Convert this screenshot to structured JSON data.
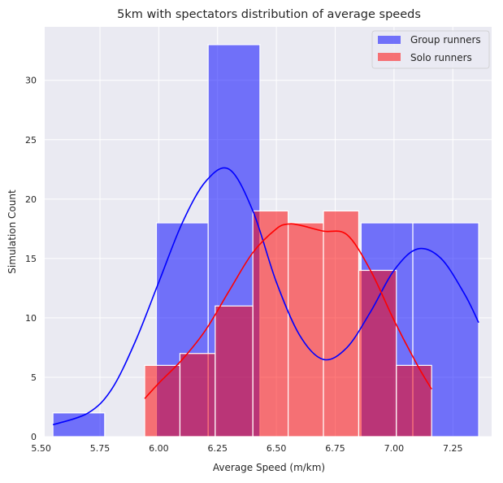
{
  "chart_data": {
    "type": "histogram",
    "title": "5km with spectators distribution of average speeds",
    "xlabel": "Average Speed (m/km)",
    "ylabel": "Simulation Count",
    "xlim": [
      5.515,
      7.415
    ],
    "ylim": [
      0,
      34.5
    ],
    "x_ticks": [
      "5.50",
      "5.75",
      "6.00",
      "6.25",
      "6.50",
      "6.75",
      "7.00",
      "7.25"
    ],
    "x_tick_values": [
      5.5,
      5.75,
      6.0,
      6.25,
      6.5,
      6.75,
      7.0,
      7.25
    ],
    "y_ticks": [
      "0",
      "5",
      "10",
      "15",
      "20",
      "25",
      "30"
    ],
    "y_tick_values": [
      0,
      5,
      10,
      15,
      20,
      25,
      30
    ],
    "grid": true,
    "legend_position": "top-right",
    "series": [
      {
        "name": "Group runners",
        "color": "#0000ff",
        "bins": [
          {
            "x0": 5.55,
            "x1": 5.77,
            "count": 2
          },
          {
            "x0": 5.77,
            "x1": 5.99,
            "count": 0
          },
          {
            "x0": 5.99,
            "x1": 6.21,
            "count": 18
          },
          {
            "x0": 6.21,
            "x1": 6.43,
            "count": 33
          },
          {
            "x0": 6.43,
            "x1": 6.64,
            "count": 0
          },
          {
            "x0": 6.64,
            "x1": 6.86,
            "count": 0
          },
          {
            "x0": 6.86,
            "x1": 7.08,
            "count": 18
          },
          {
            "x0": 7.08,
            "x1": 7.36,
            "count": 18
          }
        ],
        "kde": {
          "x": [
            5.55,
            5.7,
            5.8,
            5.9,
            6.0,
            6.1,
            6.2,
            6.3,
            6.4,
            6.5,
            6.6,
            6.7,
            6.8,
            6.9,
            7.0,
            7.1,
            7.2,
            7.3,
            7.36
          ],
          "y": [
            1.0,
            2.0,
            4.0,
            8.0,
            13.0,
            18.0,
            21.5,
            22.5,
            19.0,
            13.0,
            8.5,
            6.5,
            7.5,
            10.5,
            14.0,
            15.8,
            15.0,
            12.0,
            9.6
          ]
        }
      },
      {
        "name": "Solo runners",
        "color": "#ff0000",
        "bins": [
          {
            "x0": 5.94,
            "x1": 6.09,
            "count": 6
          },
          {
            "x0": 6.09,
            "x1": 6.24,
            "count": 7
          },
          {
            "x0": 6.24,
            "x1": 6.4,
            "count": 11
          },
          {
            "x0": 6.4,
            "x1": 6.55,
            "count": 19
          },
          {
            "x0": 6.55,
            "x1": 6.7,
            "count": 18
          },
          {
            "x0": 6.7,
            "x1": 6.85,
            "count": 19
          },
          {
            "x0": 6.85,
            "x1": 7.01,
            "count": 14
          },
          {
            "x0": 7.01,
            "x1": 7.16,
            "count": 6
          }
        ],
        "kde": {
          "x": [
            5.94,
            6.0,
            6.1,
            6.2,
            6.3,
            6.4,
            6.5,
            6.55,
            6.6,
            6.7,
            6.8,
            6.9,
            7.0,
            7.1,
            7.16
          ],
          "y": [
            3.2,
            4.5,
            6.5,
            9.0,
            12.3,
            15.5,
            17.5,
            17.9,
            17.8,
            17.3,
            17.0,
            14.0,
            9.8,
            6.0,
            4.0
          ]
        }
      }
    ]
  }
}
